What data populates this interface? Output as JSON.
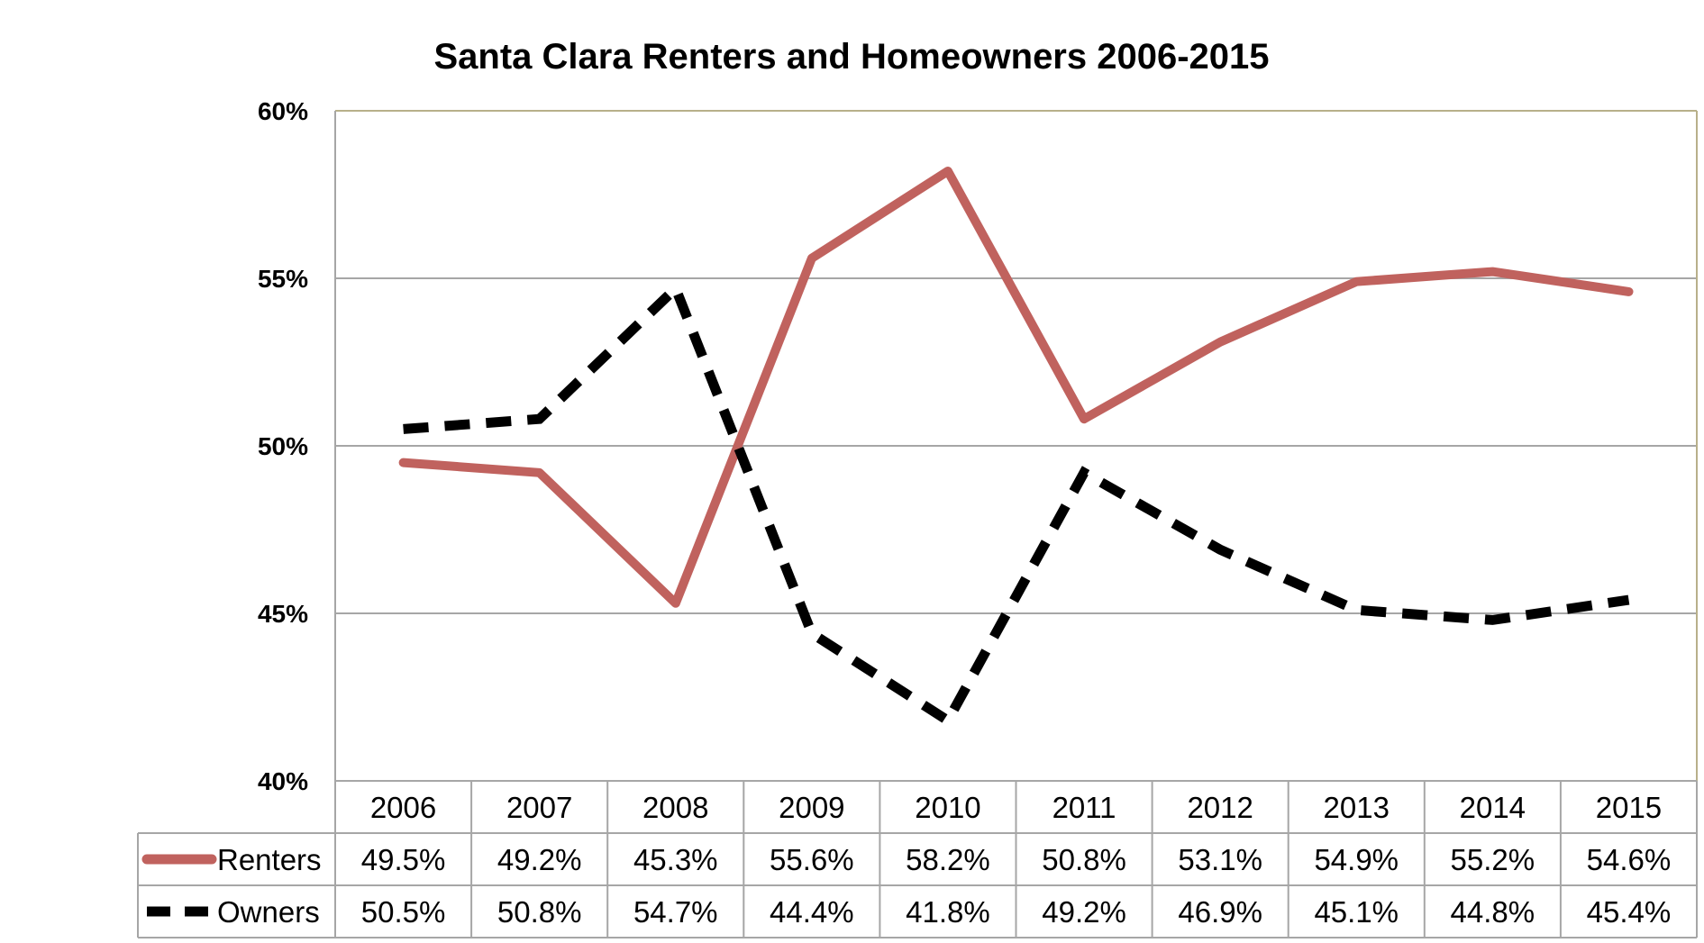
{
  "chart_data": {
    "type": "line",
    "title": "Santa Clara Renters and Homeowners 2006-2015",
    "categories": [
      "2006",
      "2007",
      "2008",
      "2009",
      "2010",
      "2011",
      "2012",
      "2013",
      "2014",
      "2015"
    ],
    "ylim": [
      40,
      60
    ],
    "y_ticks": [
      40,
      45,
      50,
      55,
      60
    ],
    "y_tick_labels": [
      "40%",
      "45%",
      "50%",
      "55%",
      "60%"
    ],
    "grid": true,
    "legend": "data table below chart",
    "series": [
      {
        "name": "Renters",
        "values": [
          49.5,
          49.2,
          45.3,
          55.6,
          58.2,
          50.8,
          53.1,
          54.9,
          55.2,
          54.6
        ],
        "labels": [
          "49.5%",
          "49.2%",
          "45.3%",
          "55.6%",
          "58.2%",
          "50.8%",
          "53.1%",
          "54.9%",
          "55.2%",
          "54.6%"
        ],
        "color": "#c0625e",
        "style": "solid"
      },
      {
        "name": "Owners",
        "values": [
          50.5,
          50.8,
          54.7,
          44.4,
          41.8,
          49.2,
          46.9,
          45.1,
          44.8,
          45.4
        ],
        "labels": [
          "50.5%",
          "50.8%",
          "54.7%",
          "44.4%",
          "41.8%",
          "49.2%",
          "46.9%",
          "45.1%",
          "44.8%",
          "45.4%"
        ],
        "color": "#000000",
        "style": "dashed"
      }
    ]
  },
  "colors": {
    "gridline": "#a6a6a6",
    "plot_border_top_right": "#b8b08a",
    "table_border": "#a6a6a6"
  }
}
